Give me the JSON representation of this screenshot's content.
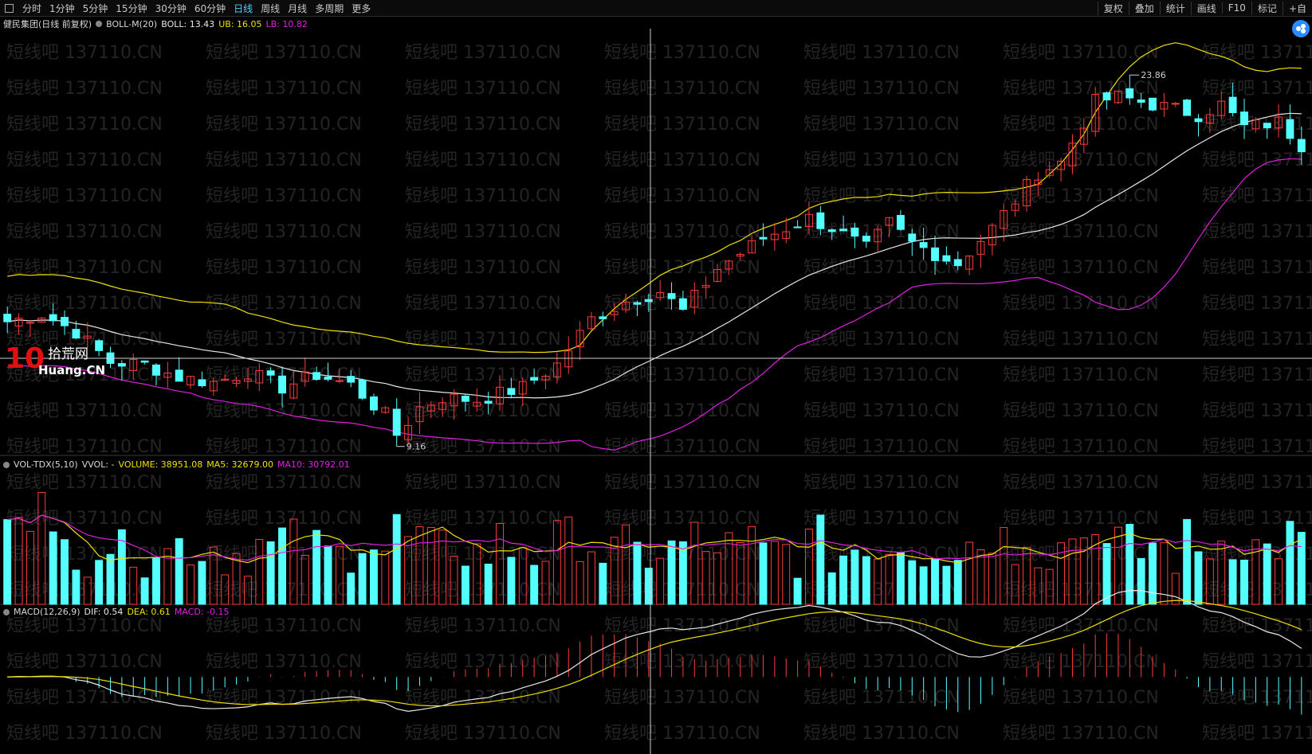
{
  "toolbar": {
    "periods": [
      "分时",
      "1分钟",
      "5分钟",
      "15分钟",
      "30分钟",
      "60分钟",
      "日线",
      "周线",
      "月线",
      "多周期",
      "更多"
    ],
    "active_period": "日线",
    "right_buttons": [
      "复权",
      "叠加",
      "统计",
      "画线",
      "F10",
      "标记",
      "+自"
    ]
  },
  "main_legend": {
    "stock": "健民集团(日线 前复权)",
    "indicator": "BOLL-M(20)",
    "boll": "BOLL: 13.43",
    "ub": "UB: 16.05",
    "lb": "LB: 10.82"
  },
  "vol_legend": {
    "indicator": "VOL-TDX(5,10)",
    "vvol": "VVOL: -",
    "volume": "VOLUME: 38951.08",
    "ma5": "MA5: 32679.00",
    "ma10": "MA10: 30792.01"
  },
  "macd_legend": {
    "indicator": "MACD(12,26,9)",
    "dif": "DIF: 0.54",
    "dea": "DEA: 0.61",
    "macd": "MACD: -0.15"
  },
  "watermark": "短线吧 137110.CN",
  "logo": {
    "number": "10",
    "cn": "拾荒网",
    "en": "Huang.CN"
  },
  "colors": {
    "up": "#ff3b3b",
    "down": "#54ffff",
    "boll_mid": "#e8e8e8",
    "boll_upper": "#f0e000",
    "boll_lower": "#e020e0",
    "ma5": "#f0e000",
    "ma10": "#e020e0",
    "dif": "#e8e8e8",
    "dea": "#f0e000",
    "crosshair": "#cfcfcf"
  },
  "chart_data": {
    "type": "candlestick",
    "title": "健民集团(日线 前复权)",
    "count": 114,
    "price_range": [
      8.9,
      25.6
    ],
    "high_marker": {
      "label": "23.86",
      "value": 23.86,
      "index": 98
    },
    "low_marker": {
      "label": "9.16",
      "value": 9.16,
      "index": 34
    },
    "close_anchors": [
      [
        0,
        14.1
      ],
      [
        3,
        14.4
      ],
      [
        6,
        13.7
      ],
      [
        9,
        12.5
      ],
      [
        12,
        12.4
      ],
      [
        15,
        11.9
      ],
      [
        18,
        11.7
      ],
      [
        21,
        12.1
      ],
      [
        24,
        11.5
      ],
      [
        27,
        12.0
      ],
      [
        30,
        11.6
      ],
      [
        33,
        10.4
      ],
      [
        34,
        9.6
      ],
      [
        36,
        10.7
      ],
      [
        38,
        11.1
      ],
      [
        41,
        11.0
      ],
      [
        45,
        11.5
      ],
      [
        48,
        12.4
      ],
      [
        51,
        14.2
      ],
      [
        54,
        14.9
      ],
      [
        57,
        15.3
      ],
      [
        59,
        14.5
      ],
      [
        62,
        16.2
      ],
      [
        66,
        17.4
      ],
      [
        70,
        18.2
      ],
      [
        72,
        17.8
      ],
      [
        75,
        17.0
      ],
      [
        77,
        18.0
      ],
      [
        79,
        17.2
      ],
      [
        83,
        16.4
      ],
      [
        86,
        17.8
      ],
      [
        90,
        20.0
      ],
      [
        92,
        20.4
      ],
      [
        95,
        22.8
      ],
      [
        97,
        23.0
      ],
      [
        98,
        22.9
      ],
      [
        101,
        22.6
      ],
      [
        104,
        22.3
      ],
      [
        106,
        22.7
      ],
      [
        108,
        21.8
      ],
      [
        111,
        22.0
      ],
      [
        113,
        21.1
      ]
    ],
    "volume_range": [
      0,
      140000
    ],
    "macd_range": [
      -1.4,
      1.1
    ]
  }
}
